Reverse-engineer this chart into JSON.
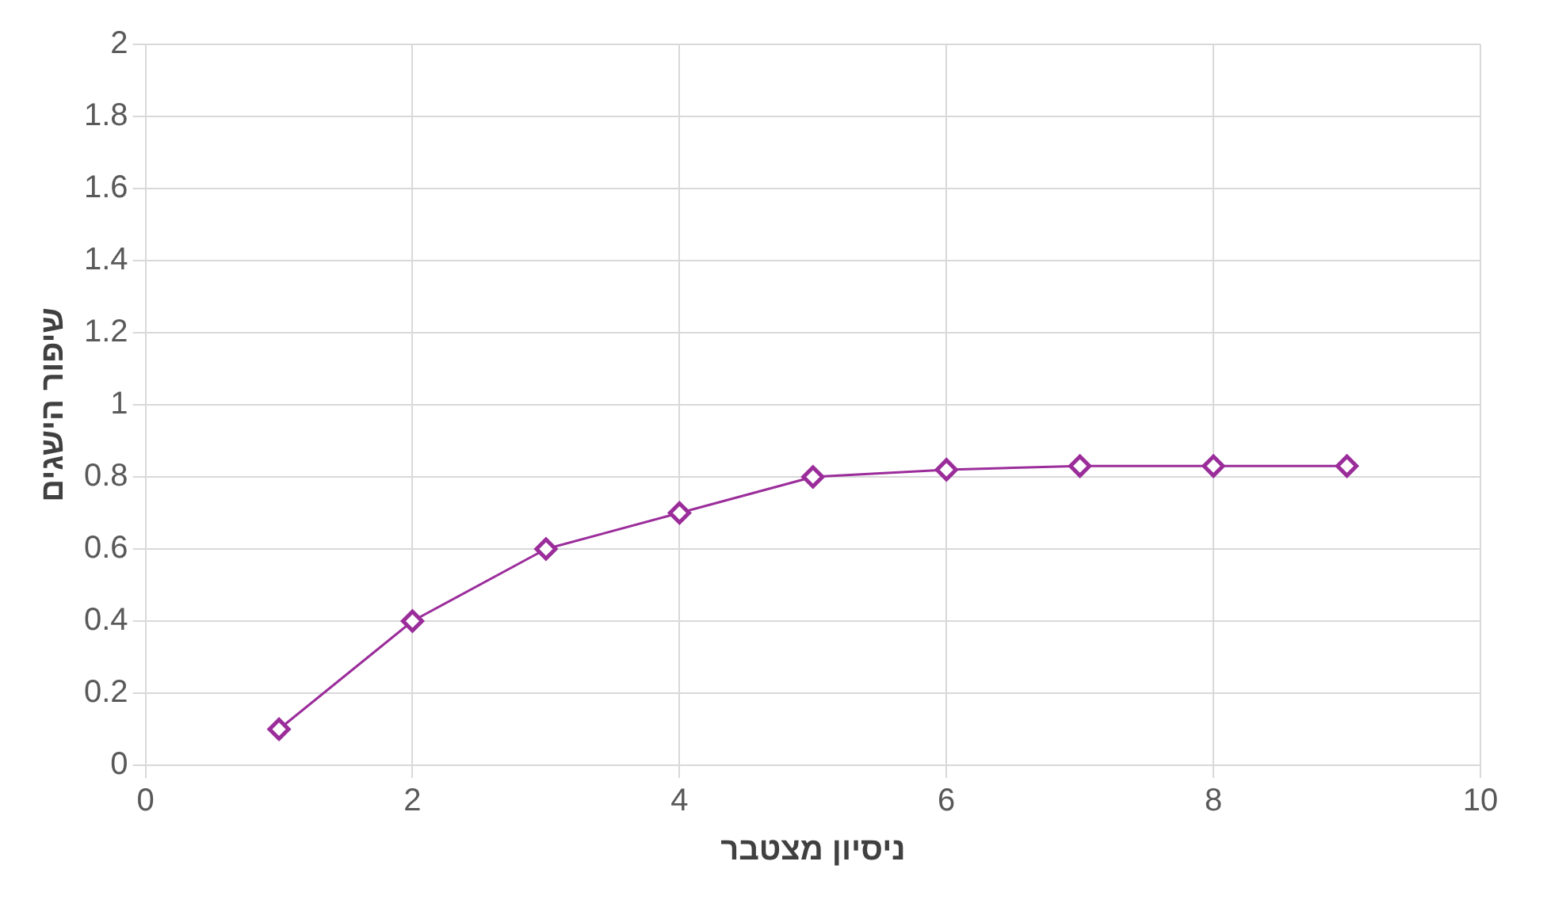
{
  "chart_data": {
    "type": "line",
    "xlabel": "ניסיון מצטבר",
    "ylabel": "שיפור הישגים",
    "x": [
      1,
      2,
      3,
      4,
      5,
      6,
      7,
      8,
      9
    ],
    "series": [
      {
        "color": "#9b2d9b",
        "values": [
          0.1,
          0.4,
          0.6,
          0.7,
          0.8,
          0.82,
          0.83,
          0.83,
          0.83
        ]
      }
    ],
    "xlim": [
      0,
      10
    ],
    "xticks": [
      0,
      2,
      4,
      6,
      8,
      10
    ],
    "ylim": [
      0,
      2
    ],
    "yticks": [
      0,
      0.2,
      0.4,
      0.6,
      0.8,
      1,
      1.2,
      1.4,
      1.6,
      1.8,
      2
    ],
    "grid": true,
    "marker": "diamond",
    "line_style": "solid"
  }
}
